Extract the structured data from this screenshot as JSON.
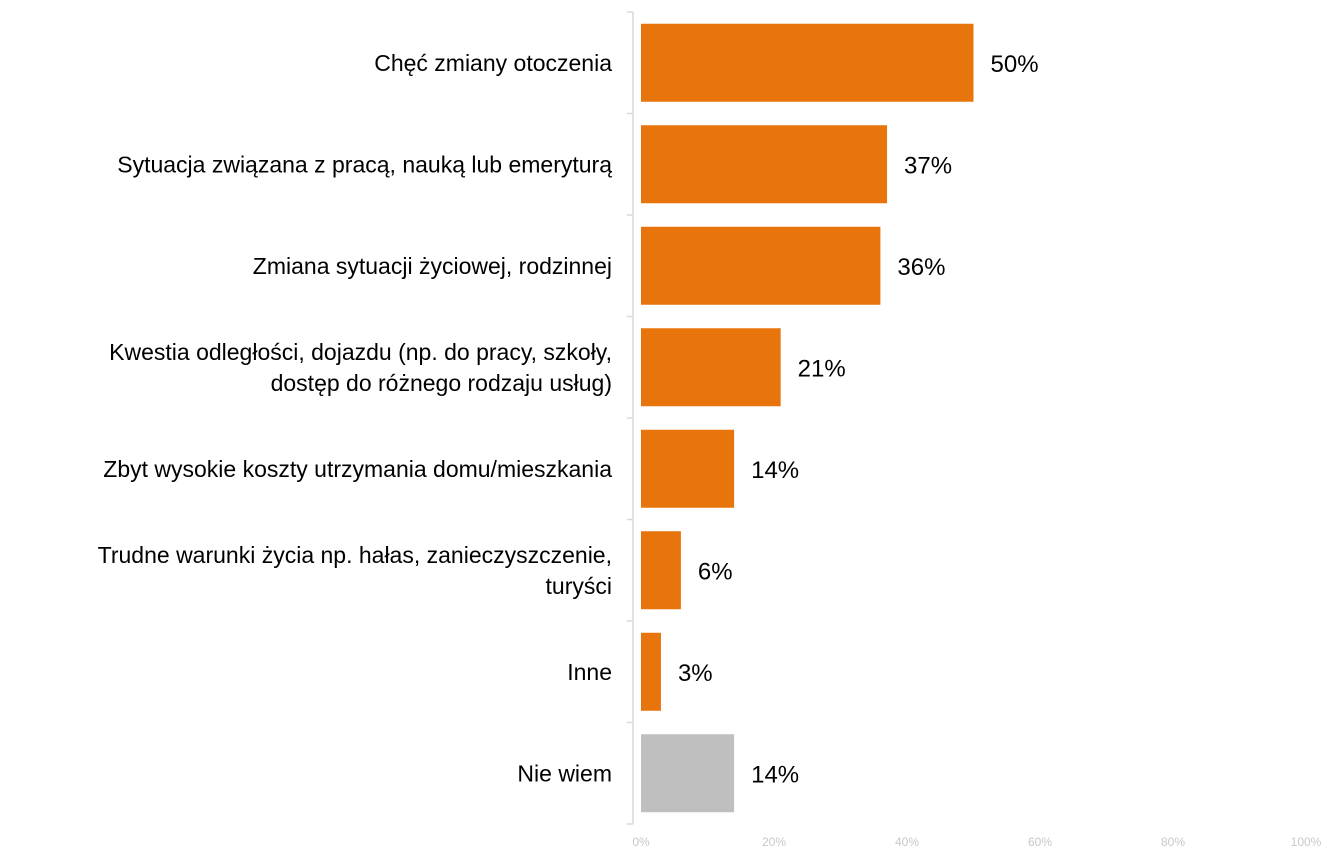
{
  "chart_data": {
    "type": "bar",
    "orientation": "horizontal",
    "title": "",
    "xlabel": "",
    "ylabel": "",
    "categories": [
      [
        "Chęć zmiany otoczenia"
      ],
      [
        "Sytuacja związana z pracą, nauką lub emeryturą"
      ],
      [
        "Zmiana sytuacji życiowej, rodzinnej"
      ],
      [
        "Kwestia odległości, dojazdu (np. do pracy, szkoły,",
        "dostęp do różnego rodzaju usług)"
      ],
      [
        "Zbyt wysokie koszty utrzymania domu/mieszkania"
      ],
      [
        "Trudne warunki życia np. hałas, zanieczyszczenie,",
        "turyści"
      ],
      [
        "Inne"
      ],
      [
        "Nie wiem"
      ]
    ],
    "values": [
      50,
      37,
      36,
      21,
      14,
      6,
      3,
      14
    ],
    "value_labels": [
      "50%",
      "37%",
      "36%",
      "21%",
      "14%",
      "6%",
      "3%",
      "14%"
    ],
    "bar_colors": [
      "#E8740C",
      "#E8740C",
      "#E8740C",
      "#E8740C",
      "#E8740C",
      "#E8740C",
      "#E8740C",
      "#BFBFBF"
    ],
    "xlim": [
      0,
      100
    ],
    "x_ticks": [
      0,
      20,
      40,
      60,
      80,
      100
    ],
    "x_tick_labels": [
      "0%",
      "20%",
      "40%",
      "60%",
      "80%",
      "100%"
    ],
    "grid": false,
    "legend": "none"
  }
}
